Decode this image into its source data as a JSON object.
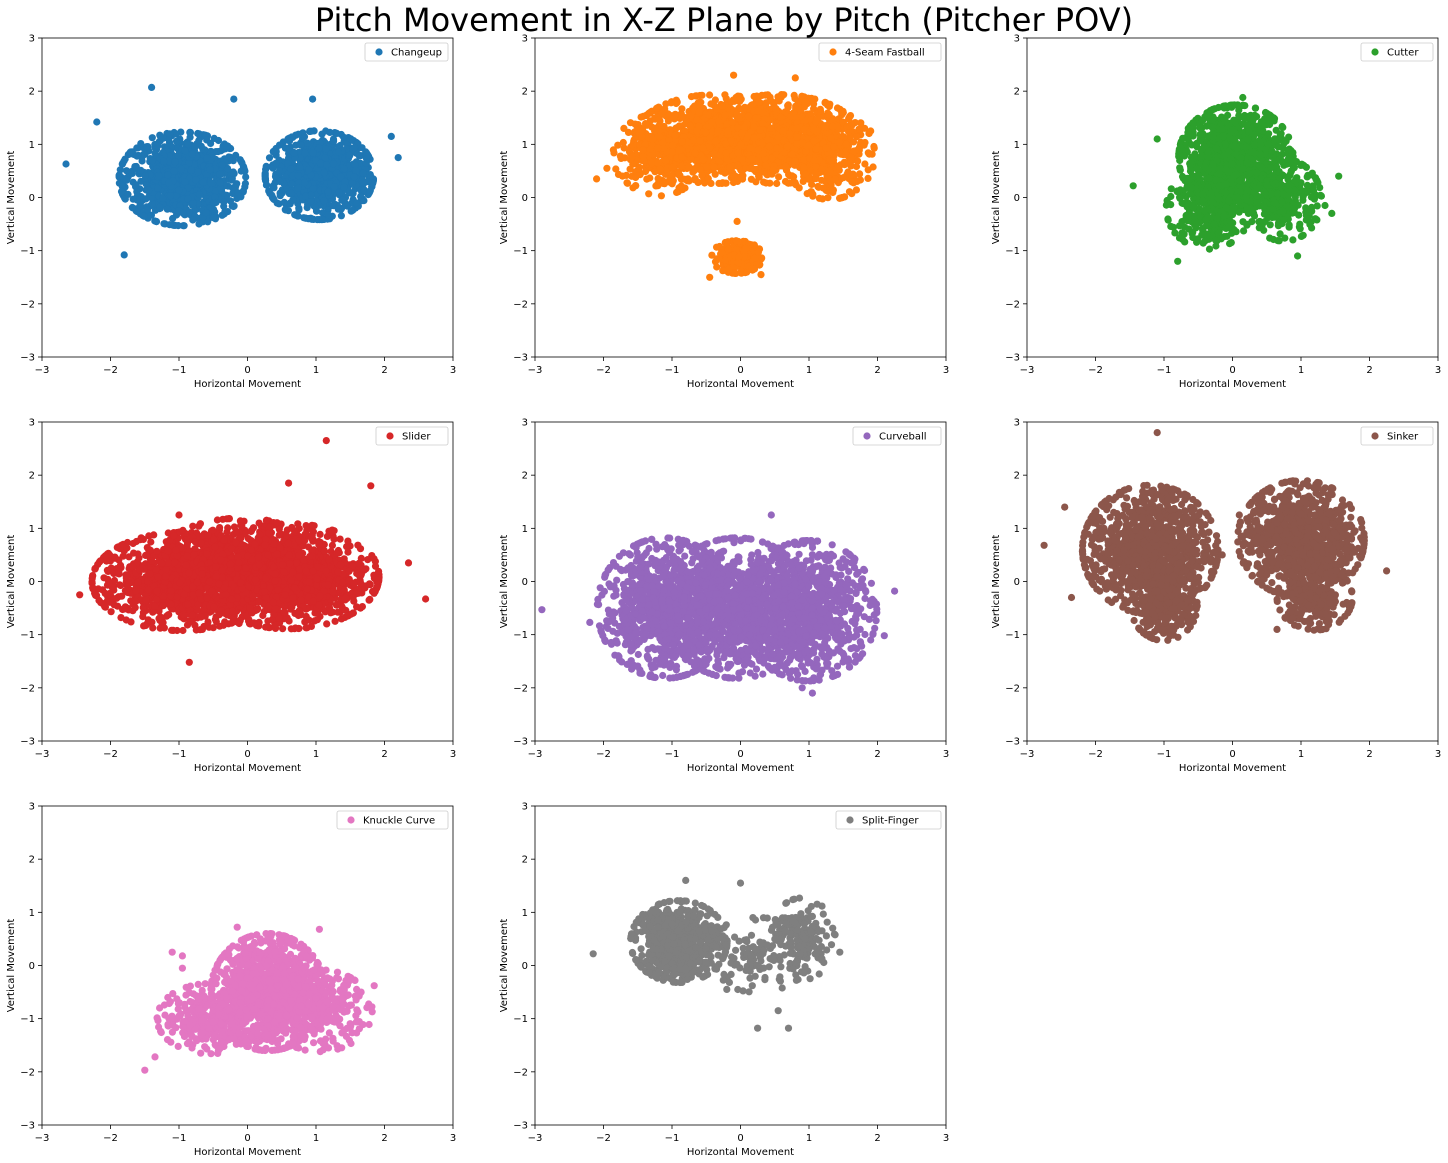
{
  "title": "Pitch Movement in X-Z Plane by Pitch (Pitcher POV)",
  "chart_data": [
    {
      "type": "scatter",
      "name": "Changeup",
      "color": "#1f77b4",
      "xlabel": "Horizontal Movement",
      "ylabel": "Vertical Movement",
      "xlim": [
        -3,
        3
      ],
      "ylim": [
        -3,
        3
      ],
      "xticks": [
        "−3",
        "−2",
        "−1",
        "0",
        "1",
        "2",
        "3"
      ],
      "yticks": [
        "−3",
        "−2",
        "−1",
        "0",
        "1",
        "2",
        "3"
      ],
      "legend": "top-right",
      "clusters": [
        {
          "cx": -0.95,
          "cy": 0.35,
          "sx": 0.42,
          "sy": 0.4,
          "n": 900
        },
        {
          "cx": 1.05,
          "cy": 0.42,
          "sx": 0.36,
          "sy": 0.38,
          "n": 800
        }
      ],
      "outliers": [
        [
          -2.65,
          0.63
        ],
        [
          -1.4,
          2.07
        ],
        [
          -0.2,
          1.85
        ],
        [
          0.95,
          1.85
        ],
        [
          2.2,
          0.75
        ],
        [
          -1.8,
          -1.08
        ],
        [
          2.1,
          1.15
        ],
        [
          -2.2,
          1.42
        ]
      ]
    },
    {
      "type": "scatter",
      "name": "4-Seam Fastball",
      "color": "#ff7f0e",
      "xlabel": "Horizontal Movement",
      "ylabel": "Vertical Movement",
      "xlim": [
        -3,
        3
      ],
      "ylim": [
        -3,
        3
      ],
      "xticks": [
        "−3",
        "−2",
        "−1",
        "0",
        "1",
        "2",
        "3"
      ],
      "yticks": [
        "−3",
        "−2",
        "−1",
        "0",
        "1",
        "2",
        "3"
      ],
      "legend": "top-right",
      "clusters": [
        {
          "cx": -0.35,
          "cy": 1.1,
          "sx": 0.55,
          "sy": 0.38,
          "n": 900
        },
        {
          "cx": 0.55,
          "cy": 1.1,
          "sx": 0.55,
          "sy": 0.38,
          "n": 900
        },
        {
          "cx": 1.3,
          "cy": 0.8,
          "sx": 0.3,
          "sy": 0.38,
          "n": 300
        },
        {
          "cx": -1.2,
          "cy": 0.8,
          "sx": 0.3,
          "sy": 0.35,
          "n": 250
        },
        {
          "cx": -0.05,
          "cy": -1.12,
          "sx": 0.17,
          "sy": 0.14,
          "n": 220
        }
      ],
      "outliers": [
        [
          -2.1,
          0.35
        ],
        [
          -1.95,
          0.55
        ],
        [
          1.9,
          1.25
        ],
        [
          -0.1,
          2.3
        ],
        [
          0.8,
          2.25
        ],
        [
          -0.45,
          -1.5
        ],
        [
          0.3,
          -1.45
        ],
        [
          -0.05,
          -0.45
        ]
      ]
    },
    {
      "type": "scatter",
      "name": "Cutter",
      "color": "#2ca02c",
      "xlabel": "Horizontal Movement",
      "ylabel": "Vertical Movement",
      "xlim": [
        -3,
        3
      ],
      "ylim": [
        -3,
        3
      ],
      "xticks": [
        "−3",
        "−2",
        "−1",
        "0",
        "1",
        "2",
        "3"
      ],
      "yticks": [
        "−3",
        "−2",
        "−1",
        "0",
        "1",
        "2",
        "3"
      ],
      "legend": "top-right",
      "clusters": [
        {
          "cx": 0.05,
          "cy": 0.75,
          "sx": 0.38,
          "sy": 0.45,
          "n": 1000
        },
        {
          "cx": -0.35,
          "cy": -0.2,
          "sx": 0.28,
          "sy": 0.35,
          "n": 300
        },
        {
          "cx": 0.75,
          "cy": -0.05,
          "sx": 0.25,
          "sy": 0.35,
          "n": 250
        }
      ],
      "outliers": [
        [
          -1.45,
          0.22
        ],
        [
          -1.1,
          1.1
        ],
        [
          1.55,
          0.4
        ],
        [
          1.35,
          -0.15
        ],
        [
          -0.8,
          -1.2
        ],
        [
          0.95,
          -1.1
        ],
        [
          1.45,
          -0.3
        ],
        [
          0.15,
          1.88
        ]
      ]
    },
    {
      "type": "scatter",
      "name": "Slider",
      "color": "#d62728",
      "xlabel": "Horizontal Movement",
      "ylabel": "Vertical Movement",
      "xlim": [
        -3,
        3
      ],
      "ylim": [
        -3,
        3
      ],
      "xticks": [
        "−3",
        "−2",
        "−1",
        "0",
        "1",
        "2",
        "3"
      ],
      "yticks": [
        "−3",
        "−2",
        "−1",
        "0",
        "1",
        "2",
        "3"
      ],
      "legend": "top-right",
      "clusters": [
        {
          "cx": -0.95,
          "cy": 0.0,
          "sx": 0.6,
          "sy": 0.42,
          "n": 1000
        },
        {
          "cx": 0.6,
          "cy": 0.1,
          "sx": 0.6,
          "sy": 0.45,
          "n": 1100
        },
        {
          "cx": -0.1,
          "cy": 0.2,
          "sx": 0.6,
          "sy": 0.45,
          "n": 600
        }
      ],
      "outliers": [
        [
          1.15,
          2.65
        ],
        [
          2.6,
          -0.33
        ],
        [
          -2.45,
          -0.25
        ],
        [
          -0.85,
          -1.52
        ],
        [
          0.6,
          1.85
        ],
        [
          1.8,
          1.8
        ],
        [
          2.35,
          0.35
        ],
        [
          -1.0,
          1.25
        ]
      ]
    },
    {
      "type": "scatter",
      "name": "Curveball",
      "color": "#9467bd",
      "xlabel": "Horizontal Movement",
      "ylabel": "Vertical Movement",
      "xlim": [
        -3,
        3
      ],
      "ylim": [
        -3,
        3
      ],
      "xticks": [
        "−3",
        "−2",
        "−1",
        "0",
        "1",
        "2",
        "3"
      ],
      "yticks": [
        "−3",
        "−2",
        "−1",
        "0",
        "1",
        "2",
        "3"
      ],
      "legend": "top-right",
      "clusters": [
        {
          "cx": -1.1,
          "cy": -0.5,
          "sx": 0.45,
          "sy": 0.6,
          "n": 900
        },
        {
          "cx": 1.0,
          "cy": -0.55,
          "sx": 0.45,
          "sy": 0.6,
          "n": 900
        },
        {
          "cx": -0.05,
          "cy": -0.5,
          "sx": 0.5,
          "sy": 0.6,
          "n": 900
        }
      ],
      "outliers": [
        [
          -2.9,
          -0.53
        ],
        [
          -2.2,
          -0.77
        ],
        [
          2.25,
          -0.18
        ],
        [
          2.1,
          -1.02
        ],
        [
          0.45,
          1.25
        ],
        [
          1.05,
          -2.1
        ],
        [
          -1.9,
          -0.1
        ],
        [
          0.9,
          -2.0
        ]
      ]
    },
    {
      "type": "scatter",
      "name": "Sinker",
      "color": "#8c564b",
      "xlabel": "Horizontal Movement",
      "ylabel": "Vertical Movement",
      "xlim": [
        -3,
        3
      ],
      "ylim": [
        -3,
        3
      ],
      "xticks": [
        "−3",
        "−2",
        "−1",
        "0",
        "1",
        "2",
        "3"
      ],
      "yticks": [
        "−3",
        "−2",
        "−1",
        "0",
        "1",
        "2",
        "3"
      ],
      "legend": "top-right",
      "clusters": [
        {
          "cx": -1.2,
          "cy": 0.6,
          "sx": 0.45,
          "sy": 0.55,
          "n": 1000
        },
        {
          "cx": -1.0,
          "cy": -0.45,
          "sx": 0.22,
          "sy": 0.3,
          "n": 250
        },
        {
          "cx": 1.0,
          "cy": 0.8,
          "sx": 0.42,
          "sy": 0.5,
          "n": 900
        },
        {
          "cx": 1.2,
          "cy": -0.3,
          "sx": 0.25,
          "sy": 0.28,
          "n": 250
        }
      ],
      "outliers": [
        [
          -1.1,
          2.8
        ],
        [
          -2.75,
          0.68
        ],
        [
          2.25,
          0.2
        ],
        [
          -2.45,
          1.4
        ],
        [
          -0.15,
          0.5
        ],
        [
          0.1,
          1.25
        ],
        [
          -2.35,
          -0.3
        ],
        [
          0.65,
          -0.9
        ]
      ]
    },
    {
      "type": "scatter",
      "name": "Knuckle Curve",
      "color": "#e377c2",
      "xlabel": "Horizontal Movement",
      "ylabel": "Vertical Movement",
      "xlim": [
        -3,
        3
      ],
      "ylim": [
        -3,
        3
      ],
      "xticks": [
        "−3",
        "−2",
        "−1",
        "0",
        "1",
        "2",
        "3"
      ],
      "yticks": [
        "−3",
        "−2",
        "−1",
        "0",
        "1",
        "2",
        "3"
      ],
      "legend": "top-right",
      "clusters": [
        {
          "cx": 0.3,
          "cy": -0.5,
          "sx": 0.38,
          "sy": 0.5,
          "n": 1100
        },
        {
          "cx": -0.55,
          "cy": -1.0,
          "sx": 0.35,
          "sy": 0.3,
          "n": 300
        },
        {
          "cx": 1.05,
          "cy": -0.85,
          "sx": 0.35,
          "sy": 0.35,
          "n": 300
        }
      ],
      "outliers": [
        [
          -1.5,
          -1.97
        ],
        [
          -1.35,
          -1.72
        ],
        [
          -1.1,
          0.25
        ],
        [
          -0.95,
          0.18
        ],
        [
          -0.95,
          -0.05
        ],
        [
          -0.15,
          0.72
        ],
        [
          1.05,
          0.68
        ],
        [
          1.85,
          -0.38
        ]
      ]
    },
    {
      "type": "scatter",
      "name": "Split-Finger",
      "color": "#7f7f7f",
      "xlabel": "Horizontal Movement",
      "ylabel": "Vertical Movement",
      "xlim": [
        -3,
        3
      ],
      "ylim": [
        -3,
        3
      ],
      "xticks": [
        "−3",
        "−2",
        "−1",
        "0",
        "1",
        "2",
        "3"
      ],
      "yticks": [
        "−3",
        "−2",
        "−1",
        "0",
        "1",
        "2",
        "3"
      ],
      "legend": "top-right",
      "clusters": [
        {
          "cx": -0.9,
          "cy": 0.45,
          "sx": 0.32,
          "sy": 0.35,
          "n": 650
        },
        {
          "cx": 0.9,
          "cy": 0.5,
          "sx": 0.22,
          "sy": 0.35,
          "n": 150
        },
        {
          "cx": 0.25,
          "cy": 0.2,
          "sx": 0.35,
          "sy": 0.32,
          "n": 120
        }
      ],
      "outliers": [
        [
          -2.15,
          0.22
        ],
        [
          0.25,
          -1.18
        ],
        [
          0.7,
          -1.18
        ],
        [
          -0.8,
          1.6
        ],
        [
          1.45,
          0.25
        ],
        [
          0.0,
          1.55
        ],
        [
          0.55,
          -0.85
        ],
        [
          -0.2,
          -0.45
        ]
      ]
    }
  ]
}
